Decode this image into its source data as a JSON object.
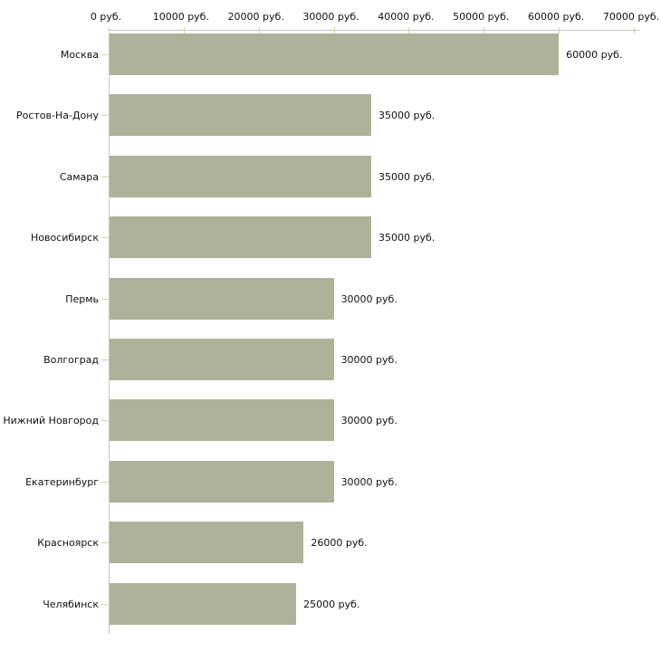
{
  "chart_data": {
    "type": "bar",
    "orientation": "horizontal",
    "title": "",
    "xlabel": "",
    "ylabel": "",
    "categories": [
      "Москва",
      "Ростов-На-Дону",
      "Самара",
      "Новосибирск",
      "Пермь",
      "Волгоград",
      "Нижний Новгород",
      "Екатеринбург",
      "Красноярск",
      "Челябинск"
    ],
    "values": [
      60000,
      35000,
      35000,
      35000,
      30000,
      30000,
      30000,
      30000,
      26000,
      25000
    ],
    "value_labels": [
      "60000 руб.",
      "35000 руб.",
      "35000 руб.",
      "35000 руб.",
      "30000 руб.",
      "30000 руб.",
      "30000 руб.",
      "30000 руб.",
      "26000 руб.",
      "25000 руб."
    ],
    "x_axis": {
      "position": "top",
      "min": 0,
      "max": 70000,
      "ticks": [
        0,
        10000,
        20000,
        30000,
        40000,
        50000,
        60000,
        70000
      ],
      "tick_labels": [
        "0 руб.",
        "10000 руб.",
        "20000 руб.",
        "30000 руб.",
        "40000 руб.",
        "50000 руб.",
        "60000 руб.",
        "70000 руб."
      ]
    },
    "grid": false,
    "legend": false,
    "colors": {
      "bar": "#adb399",
      "axis_line": "#c8c8c8",
      "tick_mark": "#d2d4a8",
      "text": "#111111",
      "background": "#ffffff"
    }
  }
}
